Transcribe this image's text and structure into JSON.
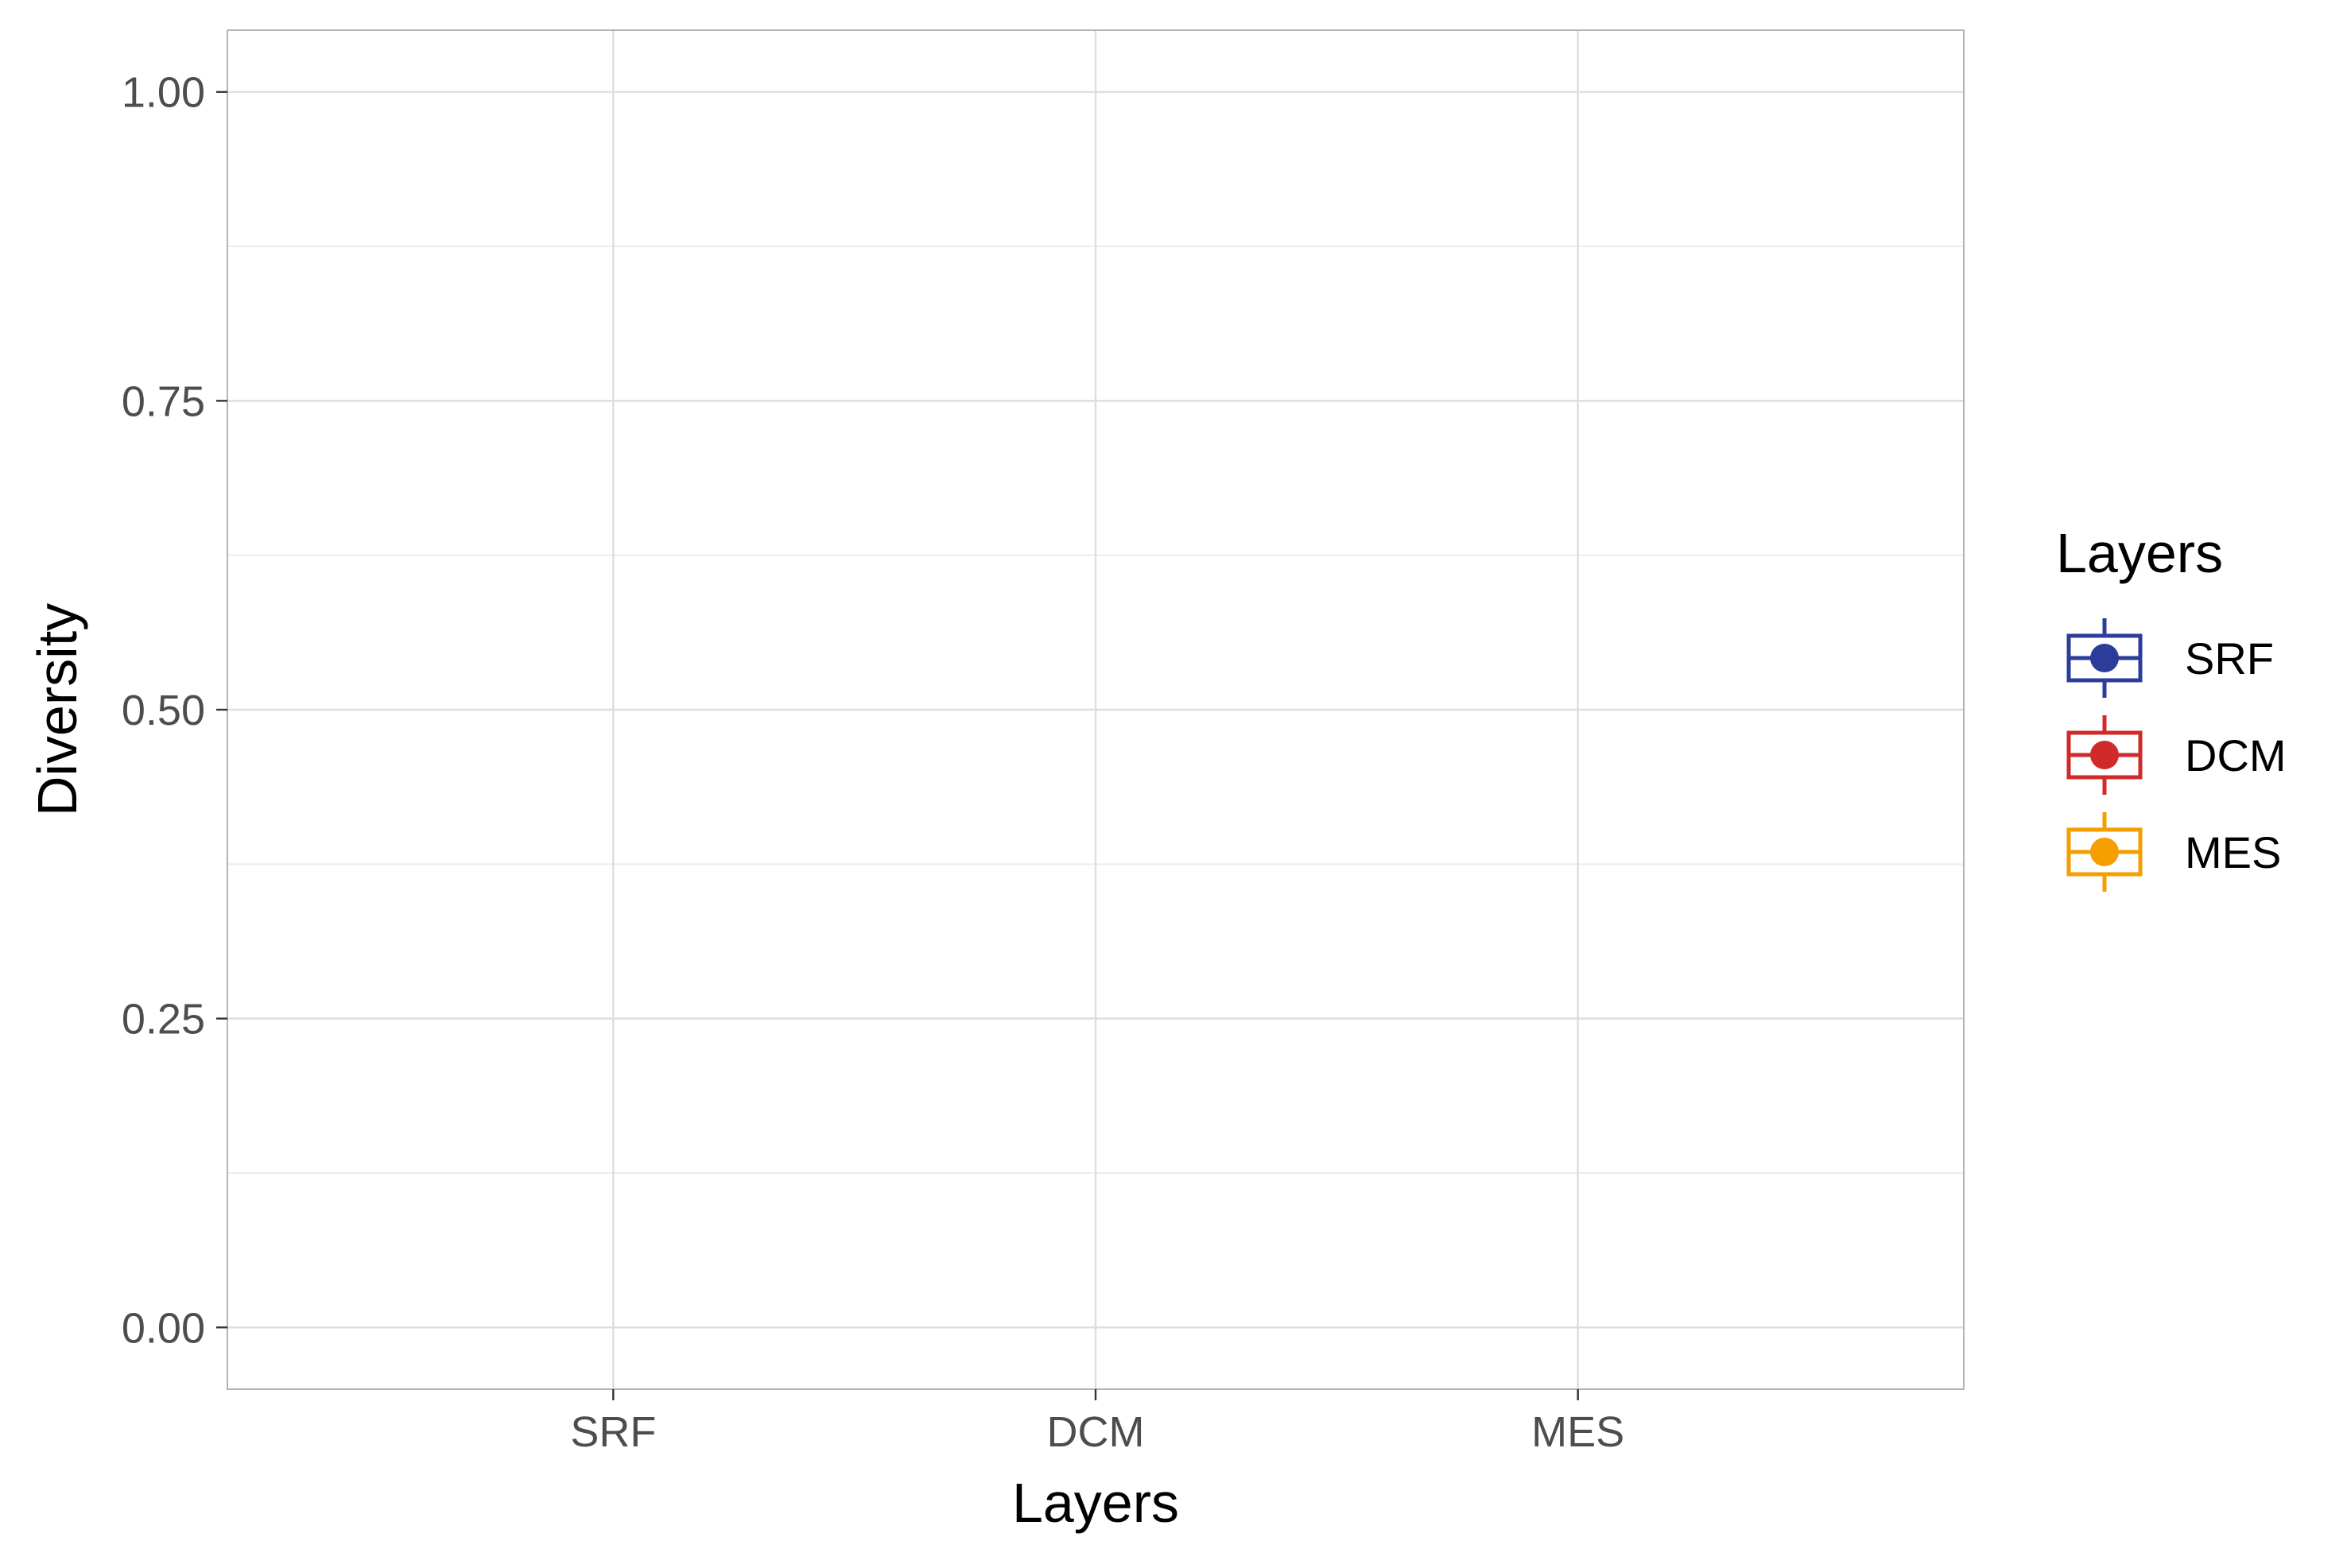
{
  "chart_data": {
    "type": "box",
    "title": "",
    "xlabel": "Layers",
    "ylabel": "Diversity",
    "categories": [
      "SRF",
      "DCM",
      "MES"
    ],
    "ylim": [
      -0.05,
      1.05
    ],
    "yticks": [
      0.0,
      0.25,
      0.5,
      0.75,
      1.0
    ],
    "ytick_labels": [
      "0.00",
      "0.25",
      "0.50",
      "0.75",
      "1.00"
    ],
    "series": [],
    "grid": true,
    "legend": {
      "title": "Layers",
      "position": "right",
      "entries": [
        {
          "label": "SRF",
          "color": "#2b3d98"
        },
        {
          "label": "DCM",
          "color": "#d12a2a"
        },
        {
          "label": "MES",
          "color": "#f59e00"
        }
      ]
    },
    "colors": {
      "panel_border": "#b3b3b3",
      "grid_major": "#dedede",
      "grid_minor": "#ececec",
      "tick_label": "#4d4d4d",
      "axis_title": "#000000"
    }
  }
}
